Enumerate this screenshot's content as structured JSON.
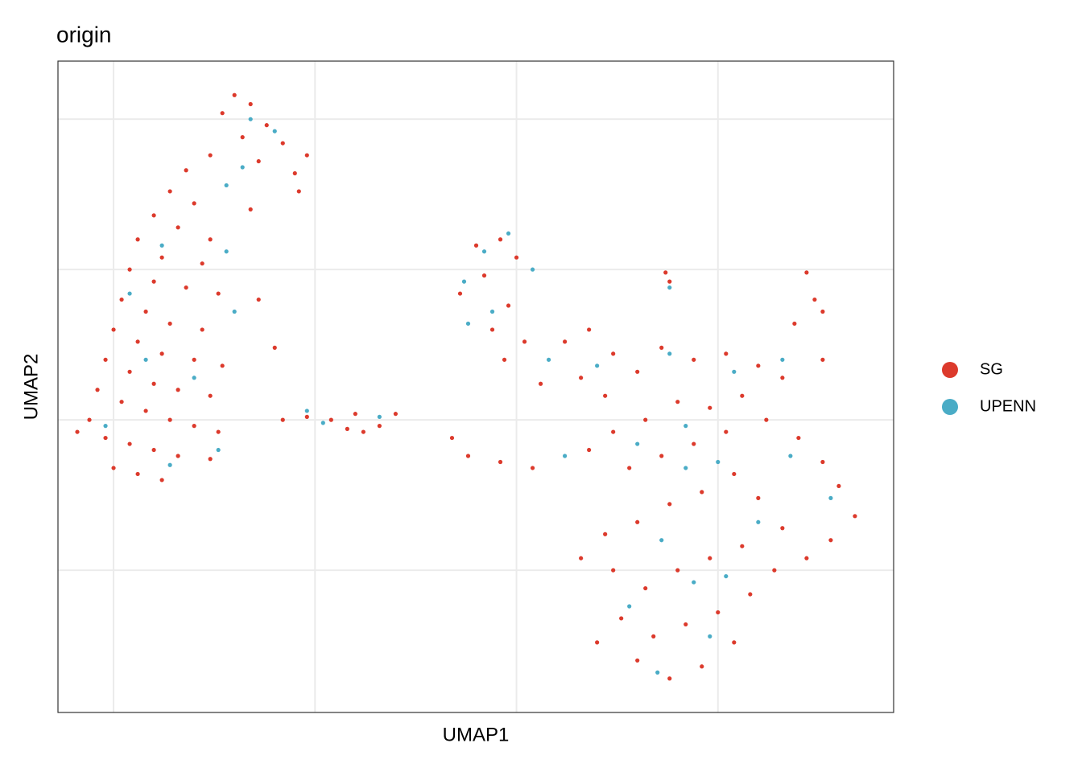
{
  "chart_data": {
    "type": "scatter",
    "title": "origin",
    "x_label": "UMAP1",
    "y_label": "UMAP2",
    "xlim": [
      -11.38,
      9.36
    ],
    "ylim": [
      -9.73,
      11.93
    ],
    "xticks": [
      -10,
      -5,
      0,
      5
    ],
    "yticks": [
      -5,
      0,
      5,
      10
    ],
    "grid": true,
    "legend": "right",
    "series": [
      {
        "name": "SG",
        "color": "#DC3A2C",
        "x": [
          -7.0,
          -6.6,
          -7.3,
          -6.2,
          -5.8,
          -6.8,
          -5.2,
          -5.5,
          -6.4,
          -7.6,
          -8.2,
          -8.6,
          -8.0,
          -9.0,
          -8.4,
          -7.6,
          -9.4,
          -8.8,
          -7.8,
          -9.6,
          -9.0,
          -8.2,
          -7.4,
          -9.8,
          -9.2,
          -8.6,
          -7.8,
          -10.0,
          -9.4,
          -8.8,
          -8.0,
          -7.3,
          -10.2,
          -9.6,
          -9.0,
          -8.4,
          -7.6,
          -10.4,
          -9.8,
          -9.2,
          -8.6,
          -8.0,
          -7.4,
          -10.6,
          -10.9,
          -10.2,
          -9.6,
          -9.0,
          -8.4,
          -7.6,
          -10.0,
          -9.4,
          -8.8,
          -6.4,
          -6.0,
          -6.6,
          -5.4,
          -5.8,
          -5.2,
          -4.6,
          -4.2,
          -3.8,
          -3.4,
          -4.0,
          -3.0,
          -1.0,
          -0.4,
          0.0,
          -0.8,
          -1.4,
          -0.2,
          -0.6,
          0.2,
          -0.3,
          0.6,
          -1.6,
          -1.2,
          -0.4,
          0.4,
          1.2,
          1.8,
          2.4,
          3.0,
          1.6,
          2.2,
          3.6,
          4.4,
          5.2,
          6.0,
          6.6,
          5.6,
          4.8,
          4.0,
          3.2,
          2.4,
          1.8,
          2.8,
          3.6,
          4.4,
          5.2,
          6.2,
          7.0,
          7.6,
          8.0,
          8.4,
          7.8,
          7.2,
          6.6,
          6.0,
          5.4,
          4.6,
          3.8,
          3.0,
          2.2,
          1.6,
          2.4,
          3.2,
          4.0,
          4.8,
          5.6,
          6.4,
          5.8,
          5.0,
          4.2,
          3.4,
          2.6,
          2.0,
          3.0,
          3.8,
          4.6,
          5.4,
          3.7,
          3.8,
          7.2,
          7.4,
          7.6,
          6.9,
          7.6
        ],
        "values": [
          10.8,
          10.5,
          10.2,
          9.8,
          9.2,
          9.4,
          8.8,
          8.2,
          8.6,
          8.8,
          8.3,
          7.6,
          7.2,
          6.8,
          6.4,
          6.0,
          6.0,
          5.4,
          5.2,
          5.0,
          4.6,
          4.4,
          4.2,
          4.0,
          3.6,
          3.2,
          3.0,
          3.0,
          2.6,
          2.2,
          2.0,
          1.8,
          2.0,
          1.6,
          1.2,
          1.0,
          0.8,
          1.0,
          0.6,
          0.3,
          0.0,
          -0.2,
          -0.4,
          0.0,
          -0.4,
          -0.6,
          -0.8,
          -1.0,
          -1.2,
          -1.3,
          -1.6,
          -1.8,
          -2.0,
          4.0,
          2.4,
          7.0,
          7.6,
          0.0,
          0.1,
          0.0,
          -0.3,
          -0.4,
          -0.2,
          0.2,
          0.2,
          5.8,
          6.0,
          5.4,
          4.8,
          4.2,
          3.8,
          3.0,
          2.6,
          2.0,
          1.2,
          -0.6,
          -1.2,
          -1.4,
          -1.6,
          2.6,
          3.0,
          2.2,
          1.6,
          1.4,
          0.8,
          2.4,
          2.0,
          2.2,
          1.8,
          1.4,
          0.8,
          0.4,
          0.6,
          0.0,
          -0.4,
          -1.0,
          -1.6,
          -1.2,
          -0.8,
          -0.4,
          0.0,
          -0.6,
          -1.4,
          -2.2,
          -3.2,
          -4.0,
          -4.6,
          -3.6,
          -2.6,
          -1.8,
          -2.4,
          -2.8,
          -3.4,
          -3.8,
          -4.6,
          -5.0,
          -5.6,
          -5.0,
          -4.6,
          -4.2,
          -5.0,
          -5.8,
          -6.4,
          -6.8,
          -7.2,
          -6.6,
          -7.4,
          -8.0,
          -8.6,
          -8.2,
          -7.4,
          4.9,
          4.6,
          4.9,
          4.0,
          3.6,
          3.2,
          2.0
        ]
      },
      {
        "name": "UPENN",
        "color": "#4AACC6",
        "x": [
          -6.6,
          -6.0,
          -6.8,
          -7.2,
          -8.8,
          -7.2,
          -9.6,
          -7.0,
          -9.2,
          -8.0,
          -10.2,
          -8.6,
          -7.4,
          -5.2,
          -4.8,
          -3.4,
          -1.3,
          -0.8,
          -0.2,
          0.4,
          -1.2,
          -0.6,
          0.8,
          2.0,
          3.8,
          5.4,
          6.6,
          4.2,
          3.0,
          5.0,
          4.2,
          6.0,
          3.6,
          4.4,
          5.2,
          2.8,
          3.5,
          4.8,
          6.8,
          3.8,
          1.2,
          7.8
        ],
        "values": [
          10.0,
          9.6,
          8.4,
          7.8,
          5.8,
          5.6,
          4.2,
          3.6,
          2.0,
          1.4,
          -0.2,
          -1.5,
          -1.0,
          0.3,
          -0.1,
          0.1,
          4.6,
          5.6,
          6.2,
          5.0,
          3.2,
          3.6,
          2.0,
          1.8,
          2.2,
          1.6,
          2.0,
          -0.2,
          -0.8,
          -1.4,
          -1.6,
          -3.4,
          -4.0,
          -5.4,
          -5.2,
          -6.2,
          -8.4,
          -7.2,
          -1.2,
          4.4,
          -1.2,
          -2.6
        ]
      }
    ]
  }
}
